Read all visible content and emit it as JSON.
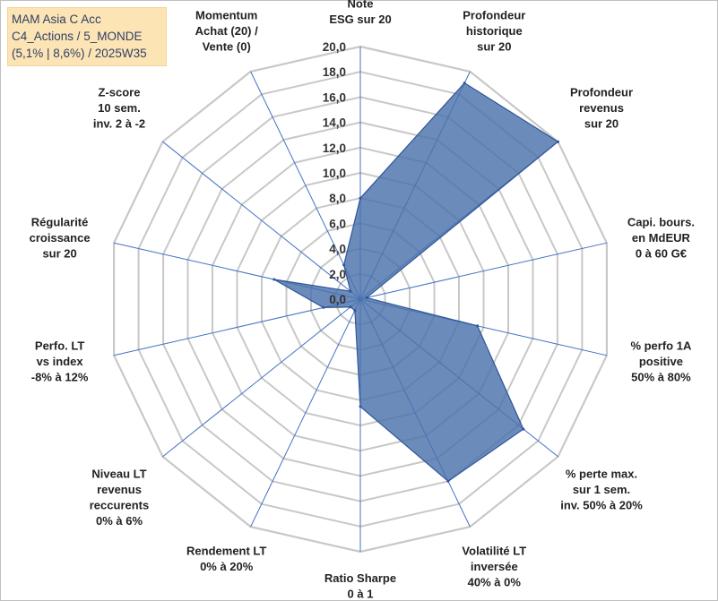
{
  "chart_data": {
    "type": "radar",
    "title_lines": [
      "MAM Asia C Acc",
      "C4_Actions / 5_MONDE",
      "(5,1% | 8,6%) / 2025W35"
    ],
    "rmin": 0,
    "rmax": 20,
    "tick_labels": [
      "0,0",
      "2,0",
      "4,0",
      "6,0",
      "8,0",
      "10,0",
      "12,0",
      "14,0",
      "16,0",
      "18,0",
      "20,0"
    ],
    "axes": [
      {
        "label": [
          "Note",
          "ESG sur 20"
        ],
        "value": 8.0
      },
      {
        "label": [
          "Profondeur",
          "historique",
          "sur 20"
        ],
        "value": 19.0
      },
      {
        "label": [
          "Profondeur",
          "revenus",
          "sur 20"
        ],
        "value": 20.0
      },
      {
        "label": [
          "Capi. bours.",
          "en MdEUR",
          "0 à 60 G€"
        ],
        "value": 0.5
      },
      {
        "label": [
          "% perfo 1A",
          "positive",
          "50% à 80%"
        ],
        "value": 9.5
      },
      {
        "label": [
          "% perte max.",
          "sur 1 sem.",
          "inv. 50% à 20%"
        ],
        "value": 16.5
      },
      {
        "label": [
          "Volatilité LT",
          "inversée",
          "40% à 0%"
        ],
        "value": 16.0
      },
      {
        "label": [
          "Ratio Sharpe",
          "0 à 1"
        ],
        "value": 8.5
      },
      {
        "label": [
          "Rendement LT",
          "0% à 20%"
        ],
        "value": 1.0
      },
      {
        "label": [
          "Niveau LT",
          "revenus",
          "reccurents",
          "0% à 6%"
        ],
        "value": 1.0
      },
      {
        "label": [
          "Perfo. LT",
          "vs index",
          "-8% à 12%"
        ],
        "value": 3.0
      },
      {
        "label": [
          "Régularité",
          "croissance",
          "sur 20"
        ],
        "value": 7.0
      },
      {
        "label": [
          "Z-score",
          "10 sem.",
          "inv. 2 à -2"
        ],
        "value": 1.0
      },
      {
        "label": [
          "Momentum",
          "Achat (20) /",
          "Vente (0)"
        ],
        "value": 3.0
      }
    ],
    "colors": {
      "fill": "#4a72ac",
      "stroke": "#2f5597",
      "grid": "#c8c8c8",
      "spoke": "#4472c4",
      "title_box": "#fce4b4",
      "title_text": "#2f3f66"
    },
    "grid": true,
    "legend": "none"
  }
}
